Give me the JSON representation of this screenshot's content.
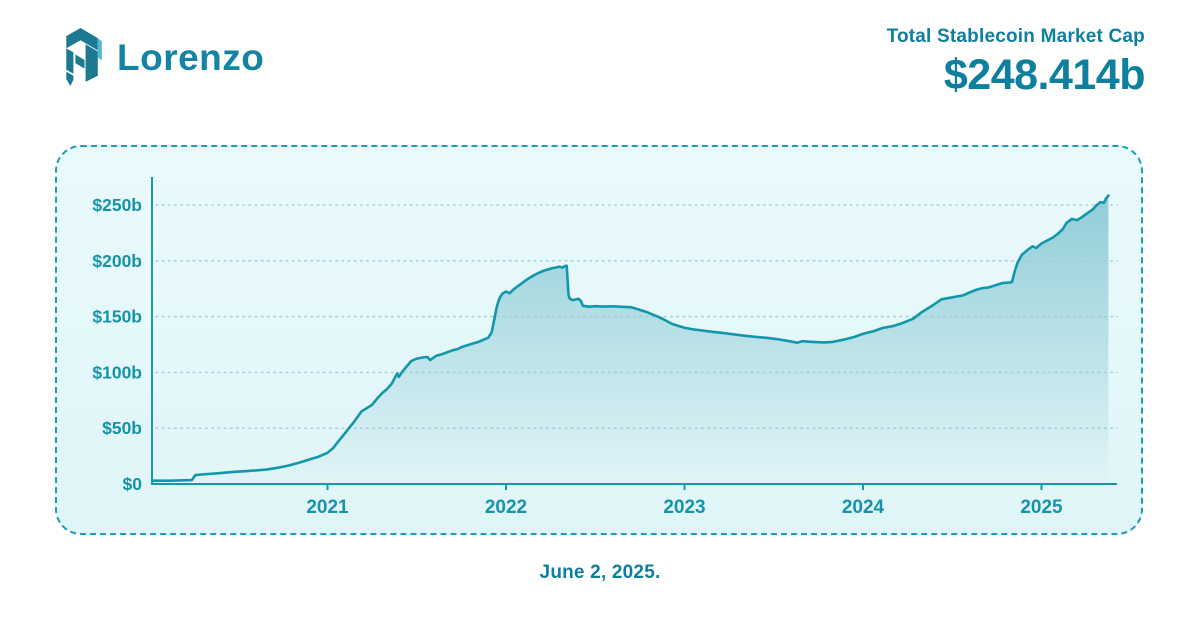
{
  "header": {
    "logo_text": "Lorenzo",
    "stat_label": "Total Stablecoin Market Cap",
    "stat_value": "$248.414b"
  },
  "footer": {
    "date_caption": "June 2, 2025."
  },
  "colors": {
    "accent_text": "#0e7f9e",
    "wordmark": "#1583a3",
    "logo_dark": "#1b7a92",
    "logo_light": "#57b7d0",
    "line": "#1297aa",
    "axis": "#1996a8",
    "tick_label": "#1593a9",
    "gridline": "#9fcdd6",
    "panel_border": "#1e9db3",
    "panel_bg": "#e4f7fa",
    "fill_top": "#8fccd6",
    "fill_bottom": "#e0f4f7"
  },
  "chart_data": {
    "type": "area",
    "title": "Total Stablecoin Market Cap",
    "current_value_label": "$248.414b",
    "as_of": "June 2, 2025.",
    "legend": "none",
    "grid": "dotted-horizontal",
    "xlim": [
      2020.02,
      2025.42
    ],
    "ylim": [
      0,
      262
    ],
    "x_ticks": [
      {
        "value": 2021,
        "label": "2021"
      },
      {
        "value": 2022,
        "label": "2022"
      },
      {
        "value": 2023,
        "label": "2023"
      },
      {
        "value": 2024,
        "label": "2024"
      },
      {
        "value": 2025,
        "label": "2025"
      }
    ],
    "y_ticks": [
      {
        "value": 0,
        "label": "$0"
      },
      {
        "value": 50,
        "label": "$50b"
      },
      {
        "value": 100,
        "label": "$100b"
      },
      {
        "value": 150,
        "label": "$150b"
      },
      {
        "value": 200,
        "label": "$200b"
      },
      {
        "value": 250,
        "label": "$250b"
      }
    ],
    "series": [
      {
        "name": "Total Stablecoin Market Cap ($b)",
        "points": [
          [
            2020.02,
            3
          ],
          [
            2020.12,
            3
          ],
          [
            2020.24,
            3.5
          ],
          [
            2020.26,
            8
          ],
          [
            2020.33,
            9
          ],
          [
            2020.4,
            9.8
          ],
          [
            2020.47,
            10.8
          ],
          [
            2020.54,
            11.5
          ],
          [
            2020.6,
            12.2
          ],
          [
            2020.66,
            13
          ],
          [
            2020.72,
            14.5
          ],
          [
            2020.78,
            16.5
          ],
          [
            2020.84,
            19
          ],
          [
            2020.9,
            22
          ],
          [
            2020.95,
            24.5
          ],
          [
            2021.0,
            28
          ],
          [
            2021.03,
            32
          ],
          [
            2021.06,
            38
          ],
          [
            2021.09,
            44
          ],
          [
            2021.12,
            50
          ],
          [
            2021.15,
            56
          ],
          [
            2021.19,
            65
          ],
          [
            2021.25,
            71
          ],
          [
            2021.28,
            77
          ],
          [
            2021.31,
            82
          ],
          [
            2021.33,
            84.5
          ],
          [
            2021.36,
            90
          ],
          [
            2021.39,
            99
          ],
          [
            2021.4,
            96
          ],
          [
            2021.42,
            101
          ],
          [
            2021.45,
            106.5
          ],
          [
            2021.47,
            110.3
          ],
          [
            2021.5,
            112.4
          ],
          [
            2021.53,
            113.3
          ],
          [
            2021.56,
            113.8
          ],
          [
            2021.575,
            111
          ],
          [
            2021.61,
            115
          ],
          [
            2021.64,
            116.2
          ],
          [
            2021.7,
            119.8
          ],
          [
            2021.73,
            121
          ],
          [
            2021.75,
            122.7
          ],
          [
            2021.81,
            125.7
          ],
          [
            2021.84,
            127
          ],
          [
            2021.87,
            129
          ],
          [
            2021.9,
            131
          ],
          [
            2021.92,
            136
          ],
          [
            2021.935,
            148
          ],
          [
            2021.95,
            160
          ],
          [
            2021.965,
            167
          ],
          [
            2021.98,
            170.5
          ],
          [
            2022.0,
            172.5
          ],
          [
            2022.02,
            171
          ],
          [
            2022.04,
            174
          ],
          [
            2022.06,
            176.5
          ],
          [
            2022.09,
            180
          ],
          [
            2022.12,
            183.5
          ],
          [
            2022.15,
            186.5
          ],
          [
            2022.18,
            189
          ],
          [
            2022.21,
            191
          ],
          [
            2022.24,
            192.5
          ],
          [
            2022.26,
            193.5
          ],
          [
            2022.28,
            194
          ],
          [
            2022.3,
            194.8
          ],
          [
            2022.315,
            193.8
          ],
          [
            2022.33,
            195.3
          ],
          [
            2022.34,
            195.5
          ],
          [
            2022.35,
            170
          ],
          [
            2022.355,
            166.5
          ],
          [
            2022.37,
            164.8
          ],
          [
            2022.39,
            165.3
          ],
          [
            2022.405,
            166
          ],
          [
            2022.42,
            164
          ],
          [
            2022.43,
            159.8
          ],
          [
            2022.46,
            158.9
          ],
          [
            2022.5,
            159.3
          ],
          [
            2022.55,
            159
          ],
          [
            2022.6,
            159.2
          ],
          [
            2022.65,
            158.8
          ],
          [
            2022.7,
            158.4
          ],
          [
            2022.73,
            157
          ],
          [
            2022.76,
            155.5
          ],
          [
            2022.79,
            154
          ],
          [
            2022.82,
            152
          ],
          [
            2022.85,
            150
          ],
          [
            2022.88,
            147.8
          ],
          [
            2022.93,
            143.5
          ],
          [
            2022.97,
            141.5
          ],
          [
            2023.0,
            140
          ],
          [
            2023.05,
            138.5
          ],
          [
            2023.1,
            137.5
          ],
          [
            2023.16,
            136.3
          ],
          [
            2023.22,
            135.2
          ],
          [
            2023.28,
            134
          ],
          [
            2023.34,
            132.8
          ],
          [
            2023.4,
            131.8
          ],
          [
            2023.46,
            131
          ],
          [
            2023.51,
            130
          ],
          [
            2023.56,
            128.8
          ],
          [
            2023.6,
            127.6
          ],
          [
            2023.63,
            126.6
          ],
          [
            2023.66,
            128
          ],
          [
            2023.72,
            127.3
          ],
          [
            2023.78,
            126.9
          ],
          [
            2023.83,
            127.3
          ],
          [
            2023.89,
            129.3
          ],
          [
            2023.95,
            131.7
          ],
          [
            2024.0,
            134.5
          ],
          [
            2024.06,
            137
          ],
          [
            2024.11,
            139.8
          ],
          [
            2024.17,
            141.6
          ],
          [
            2024.22,
            144.2
          ],
          [
            2024.28,
            148
          ],
          [
            2024.33,
            154
          ],
          [
            2024.39,
            160
          ],
          [
            2024.44,
            165.5
          ],
          [
            2024.5,
            167.3
          ],
          [
            2024.56,
            169
          ],
          [
            2024.61,
            172.5
          ],
          [
            2024.64,
            174.3
          ],
          [
            2024.67,
            175.5
          ],
          [
            2024.7,
            176
          ],
          [
            2024.74,
            178
          ],
          [
            2024.78,
            180
          ],
          [
            2024.82,
            180.5
          ],
          [
            2024.835,
            181
          ],
          [
            2024.85,
            190.5
          ],
          [
            2024.865,
            198
          ],
          [
            2024.89,
            205.5
          ],
          [
            2024.92,
            209.5
          ],
          [
            2024.95,
            213
          ],
          [
            2024.97,
            211.5
          ],
          [
            2025.0,
            215.5
          ],
          [
            2025.03,
            218
          ],
          [
            2025.06,
            220.5
          ],
          [
            2025.09,
            224
          ],
          [
            2025.12,
            228.5
          ],
          [
            2025.14,
            234
          ],
          [
            2025.17,
            237.5
          ],
          [
            2025.2,
            236.5
          ],
          [
            2025.23,
            239.5
          ],
          [
            2025.26,
            243
          ],
          [
            2025.29,
            246.5
          ],
          [
            2025.31,
            250
          ],
          [
            2025.33,
            252.5
          ],
          [
            2025.35,
            252
          ],
          [
            2025.36,
            255.5
          ],
          [
            2025.375,
            258.5
          ]
        ]
      }
    ]
  }
}
